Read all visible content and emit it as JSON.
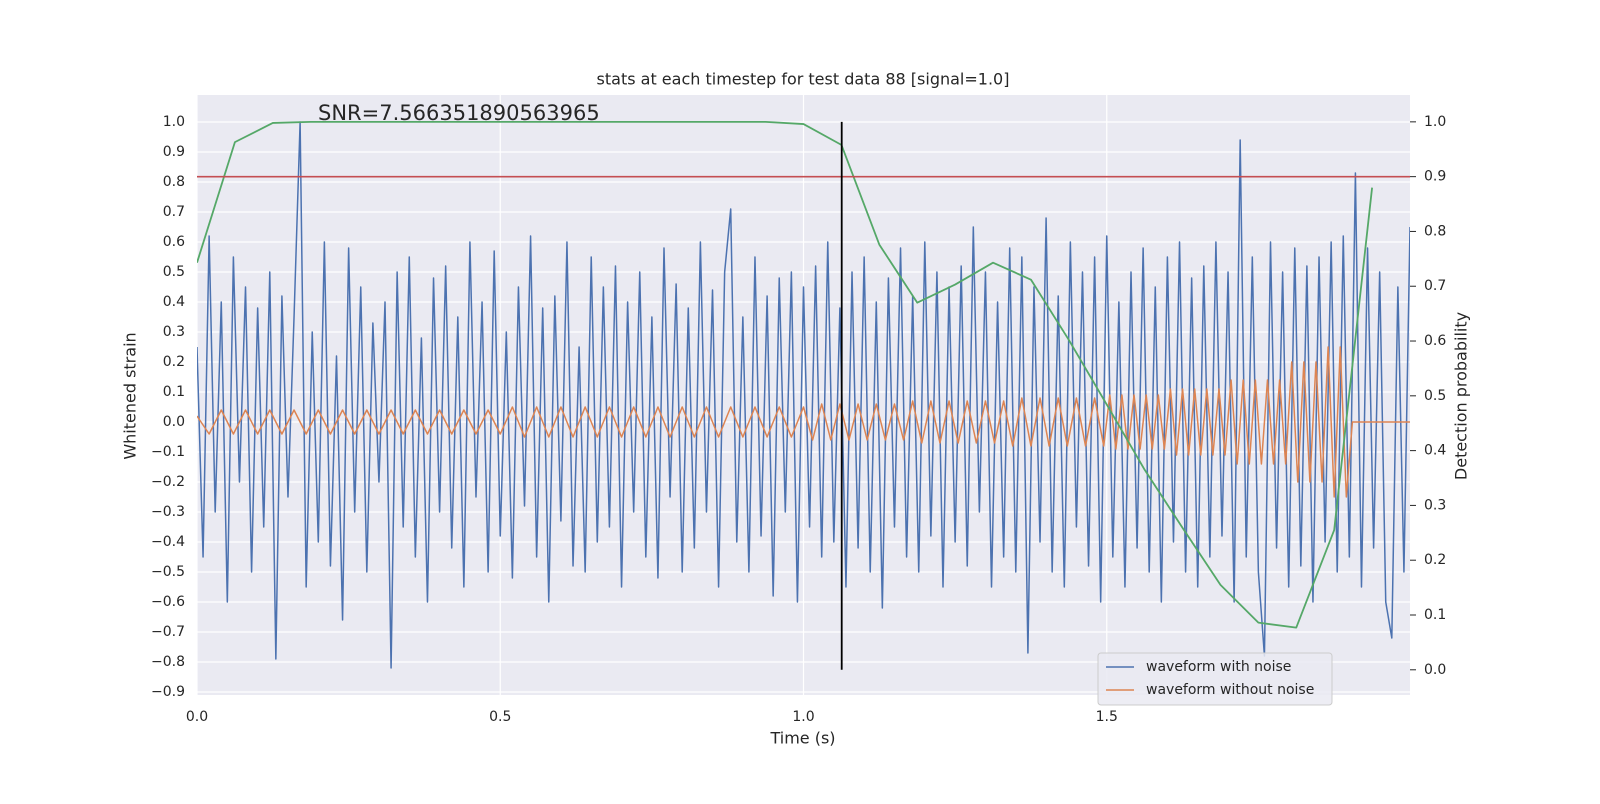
{
  "chart_data": {
    "type": "line",
    "title": "stats at each timestep for test data 88 [signal=1.0]",
    "annotation": "SNR=7.566351890563965",
    "xlabel": "Time (s)",
    "ylabel": "Whitened strain",
    "y2label": "Detection probability",
    "xlim": [
      0,
      2.0
    ],
    "ylim": [
      -0.91,
      1.09
    ],
    "y2lim": [
      -0.046,
      1.049
    ],
    "xticks": [
      {
        "value": 0,
        "label": "0.0"
      },
      {
        "value": 0.5,
        "label": "0.5"
      },
      {
        "value": 1,
        "label": "1.0"
      },
      {
        "value": 1.5,
        "label": "1.5"
      }
    ],
    "yticks": [
      {
        "value": -0.9,
        "label": "−0.9"
      },
      {
        "value": -0.8,
        "label": "−0.8"
      },
      {
        "value": -0.7,
        "label": "−0.7"
      },
      {
        "value": -0.6,
        "label": "−0.6"
      },
      {
        "value": -0.5,
        "label": "−0.5"
      },
      {
        "value": -0.4,
        "label": "−0.4"
      },
      {
        "value": -0.3,
        "label": "−0.3"
      },
      {
        "value": -0.2,
        "label": "−0.2"
      },
      {
        "value": -0.1,
        "label": "−0.1"
      },
      {
        "value": 0,
        "label": "0.0"
      },
      {
        "value": 0.1,
        "label": "0.1"
      },
      {
        "value": 0.2,
        "label": "0.2"
      },
      {
        "value": 0.3,
        "label": "0.3"
      },
      {
        "value": 0.4,
        "label": "0.4"
      },
      {
        "value": 0.5,
        "label": "0.5"
      },
      {
        "value": 0.6,
        "label": "0.6"
      },
      {
        "value": 0.7,
        "label": "0.7"
      },
      {
        "value": 0.8,
        "label": "0.8"
      },
      {
        "value": 0.9,
        "label": "0.9"
      },
      {
        "value": 1,
        "label": "1.0"
      }
    ],
    "y2ticks": [
      {
        "value": 0,
        "label": "0.0"
      },
      {
        "value": 0.1,
        "label": "0.1"
      },
      {
        "value": 0.2,
        "label": "0.2"
      },
      {
        "value": 0.3,
        "label": "0.3"
      },
      {
        "value": 0.4,
        "label": "0.4"
      },
      {
        "value": 0.5,
        "label": "0.5"
      },
      {
        "value": 0.6,
        "label": "0.6"
      },
      {
        "value": 0.7,
        "label": "0.7"
      },
      {
        "value": 0.8,
        "label": "0.8"
      },
      {
        "value": 0.9,
        "label": "0.9"
      },
      {
        "value": 1,
        "label": "1.0"
      }
    ],
    "grid": true,
    "legend": "lower right",
    "series": [
      {
        "name": "waveform with noise",
        "color": "#4c72b0",
        "x": [
          0,
          0.01,
          0.02,
          0.03,
          0.04,
          0.05,
          0.06,
          0.07,
          0.08,
          0.09,
          0.1,
          0.11,
          0.12,
          0.13,
          0.14,
          0.15,
          0.16,
          0.17,
          0.18,
          0.19,
          0.2,
          0.21,
          0.22,
          0.23,
          0.24,
          0.25,
          0.26,
          0.27,
          0.28,
          0.29,
          0.3,
          0.31,
          0.32,
          0.33,
          0.34,
          0.35,
          0.36,
          0.37,
          0.38,
          0.39,
          0.4,
          0.41,
          0.42,
          0.43,
          0.44,
          0.45,
          0.46,
          0.47,
          0.48,
          0.49,
          0.5,
          0.51,
          0.52,
          0.53,
          0.54,
          0.55,
          0.56,
          0.57,
          0.58,
          0.59,
          0.6,
          0.61,
          0.62,
          0.63,
          0.64,
          0.65,
          0.66,
          0.67,
          0.68,
          0.69,
          0.7,
          0.71,
          0.72,
          0.73,
          0.74,
          0.75,
          0.76,
          0.77,
          0.78,
          0.79,
          0.8,
          0.81,
          0.82,
          0.83,
          0.84,
          0.85,
          0.86,
          0.87,
          0.88,
          0.89,
          0.9,
          0.91,
          0.92,
          0.93,
          0.94,
          0.95,
          0.96,
          0.97,
          0.98,
          0.99,
          1,
          1.01,
          1.02,
          1.03,
          1.04,
          1.05,
          1.06,
          1.07,
          1.08,
          1.09,
          1.1,
          1.11,
          1.12,
          1.13,
          1.14,
          1.15,
          1.16,
          1.17,
          1.18,
          1.19,
          1.2,
          1.21,
          1.22,
          1.23,
          1.24,
          1.25,
          1.26,
          1.27,
          1.28,
          1.29,
          1.3,
          1.31,
          1.32,
          1.33,
          1.34,
          1.35,
          1.36,
          1.37,
          1.38,
          1.39,
          1.4,
          1.41,
          1.42,
          1.43,
          1.44,
          1.45,
          1.46,
          1.47,
          1.48,
          1.49,
          1.5,
          1.51,
          1.52,
          1.53,
          1.54,
          1.55,
          1.56,
          1.57,
          1.58,
          1.59,
          1.6,
          1.61,
          1.62,
          1.63,
          1.64,
          1.65,
          1.66,
          1.67,
          1.68,
          1.69,
          1.7,
          1.71,
          1.72,
          1.73,
          1.74,
          1.75,
          1.76,
          1.77,
          1.78,
          1.79,
          1.8,
          1.81,
          1.82,
          1.83,
          1.84,
          1.85,
          1.86,
          1.87,
          1.88,
          1.89,
          1.9,
          1.91,
          1.92,
          1.93,
          1.94,
          1.95,
          1.96,
          1.97,
          1.98,
          1.99,
          2.0
        ],
        "values": [
          0.25,
          -0.45,
          0.62,
          -0.3,
          0.4,
          -0.6,
          0.55,
          -0.2,
          0.45,
          -0.5,
          0.38,
          -0.35,
          0.5,
          -0.79,
          0.42,
          -0.25,
          0.35,
          1.0,
          -0.55,
          0.3,
          -0.4,
          0.6,
          -0.48,
          0.22,
          -0.66,
          0.58,
          -0.3,
          0.45,
          -0.5,
          0.33,
          -0.2,
          0.4,
          -0.82,
          0.5,
          -0.35,
          0.55,
          -0.45,
          0.28,
          -0.6,
          0.48,
          -0.3,
          0.52,
          -0.42,
          0.35,
          -0.55,
          0.6,
          -0.25,
          0.4,
          -0.5,
          0.57,
          -0.38,
          0.3,
          -0.52,
          0.45,
          -0.28,
          0.62,
          -0.45,
          0.38,
          -0.6,
          0.42,
          -0.33,
          0.6,
          -0.48,
          0.25,
          -0.5,
          0.55,
          -0.4,
          0.45,
          -0.35,
          0.52,
          -0.55,
          0.4,
          -0.3,
          0.5,
          -0.45,
          0.35,
          -0.52,
          0.58,
          -0.25,
          0.46,
          -0.5,
          0.38,
          -0.42,
          0.6,
          -0.3,
          0.44,
          -0.55,
          0.5,
          0.71,
          -0.4,
          0.35,
          -0.5,
          0.55,
          -0.38,
          0.42,
          -0.58,
          0.48,
          -0.3,
          0.5,
          -0.6,
          0.45,
          -0.35,
          0.52,
          -0.45,
          0.6,
          -0.4,
          0.38,
          -0.55,
          0.5,
          -0.42,
          0.55,
          -0.5,
          0.4,
          -0.62,
          0.48,
          -0.35,
          0.58,
          -0.45,
          0.42,
          -0.5,
          0.6,
          -0.38,
          0.5,
          -0.55,
          0.45,
          -0.4,
          0.52,
          -0.48,
          0.65,
          -0.3,
          0.5,
          -0.55,
          0.4,
          -0.45,
          0.58,
          -0.5,
          0.55,
          -0.77,
          0.45,
          -0.4,
          0.68,
          -0.5,
          0.42,
          -0.55,
          0.6,
          -0.35,
          0.5,
          -0.48,
          0.55,
          -0.6,
          0.62,
          -0.45,
          0.4,
          -0.55,
          0.5,
          -0.42,
          0.58,
          -0.5,
          0.45,
          -0.6,
          0.55,
          -0.4,
          0.6,
          -0.5,
          0.48,
          -0.55,
          0.52,
          -0.45,
          0.6,
          -0.38,
          0.5,
          -0.6,
          0.94,
          -0.45,
          0.55,
          -0.5,
          -0.78,
          0.6,
          -0.42,
          0.5,
          -0.55,
          0.58,
          -0.48,
          0.52,
          -0.6,
          0.55,
          -0.4,
          0.6,
          -0.5,
          0.62,
          -0.45,
          0.83,
          -0.55,
          0.58,
          -0.42,
          0.5,
          -0.6,
          -0.72,
          0.45,
          -0.5,
          0.65
        ]
      },
      {
        "name": "waveform without noise",
        "color": "#dd8452",
        "x": [
          0,
          0.02,
          0.04,
          0.06,
          0.08,
          0.1,
          0.12,
          0.14,
          0.16,
          0.18,
          0.2,
          0.22,
          0.24,
          0.26,
          0.28,
          0.3,
          0.32,
          0.34,
          0.36,
          0.38,
          0.4,
          0.42,
          0.44,
          0.46,
          0.48,
          0.5,
          0.52,
          0.54,
          0.56,
          0.58,
          0.6,
          0.62,
          0.64,
          0.66,
          0.68,
          0.7,
          0.72,
          0.74,
          0.76,
          0.78,
          0.8,
          0.82,
          0.84,
          0.86,
          0.88,
          0.9,
          0.92,
          0.94,
          0.96,
          0.98,
          1.0,
          1.015,
          1.03,
          1.045,
          1.06,
          1.075,
          1.09,
          1.105,
          1.12,
          1.135,
          1.15,
          1.165,
          1.18,
          1.195,
          1.21,
          1.225,
          1.24,
          1.255,
          1.27,
          1.285,
          1.3,
          1.315,
          1.33,
          1.345,
          1.36,
          1.375,
          1.39,
          1.405,
          1.42,
          1.435,
          1.45,
          1.465,
          1.48,
          1.495,
          1.505,
          1.515,
          1.525,
          1.535,
          1.545,
          1.555,
          1.565,
          1.575,
          1.585,
          1.595,
          1.605,
          1.615,
          1.625,
          1.635,
          1.645,
          1.655,
          1.665,
          1.675,
          1.685,
          1.695,
          1.705,
          1.715,
          1.725,
          1.735,
          1.745,
          1.755,
          1.765,
          1.775,
          1.785,
          1.795,
          1.805,
          1.815,
          1.825,
          1.835,
          1.845,
          1.855,
          1.865,
          1.875,
          1.885,
          1.895,
          1.905,
          2.0
        ],
        "values": [
          0.02,
          -0.04,
          0.04,
          -0.04,
          0.04,
          -0.04,
          0.04,
          -0.04,
          0.04,
          -0.04,
          0.04,
          -0.04,
          0.04,
          -0.04,
          0.04,
          -0.04,
          0.04,
          -0.04,
          0.04,
          -0.04,
          0.04,
          -0.04,
          0.04,
          -0.04,
          0.04,
          -0.04,
          0.05,
          -0.05,
          0.05,
          -0.05,
          0.05,
          -0.05,
          0.05,
          -0.05,
          0.05,
          -0.05,
          0.05,
          -0.05,
          0.05,
          -0.05,
          0.05,
          -0.05,
          0.05,
          -0.05,
          0.05,
          -0.05,
          0.05,
          -0.05,
          0.05,
          -0.05,
          0.05,
          -0.06,
          0.06,
          -0.06,
          0.06,
          -0.06,
          0.06,
          -0.06,
          0.06,
          -0.06,
          0.06,
          -0.06,
          0.07,
          -0.07,
          0.07,
          -0.07,
          0.07,
          -0.07,
          0.07,
          -0.07,
          0.07,
          -0.07,
          0.07,
          -0.08,
          0.08,
          -0.08,
          0.08,
          -0.08,
          0.08,
          -0.08,
          0.08,
          -0.08,
          0.08,
          -0.08,
          0.09,
          -0.09,
          0.09,
          -0.09,
          0.09,
          -0.09,
          0.09,
          -0.09,
          0.09,
          -0.09,
          0.11,
          -0.11,
          0.11,
          -0.11,
          0.11,
          -0.11,
          0.11,
          -0.11,
          0.11,
          -0.11,
          0.14,
          -0.14,
          0.14,
          -0.14,
          0.14,
          -0.14,
          0.14,
          -0.14,
          0.14,
          -0.14,
          0.2,
          -0.2,
          0.2,
          -0.2,
          0.2,
          -0.2,
          0.25,
          -0.25,
          0.25,
          -0.25,
          0,
          0
        ]
      },
      {
        "color": "#55a868",
        "axis": "y2",
        "x": [
          0,
          0.0625,
          0.125,
          0.1875,
          0.25,
          0.3125,
          0.375,
          0.4375,
          0.5,
          0.5625,
          0.625,
          0.6875,
          0.75,
          0.8125,
          0.875,
          0.9375,
          1.0,
          1.0625,
          1.125,
          1.1875,
          1.25,
          1.3125,
          1.375,
          1.4375,
          1.5,
          1.5625,
          1.625,
          1.6875,
          1.75,
          1.8125,
          1.875,
          1.9375
        ],
        "values": [
          0.743,
          0.963,
          0.998,
          1.0,
          1.0,
          1.0,
          1.0,
          1.0,
          1.0,
          1.0,
          1.0,
          1.0,
          1.0,
          1.0,
          1.0,
          1.0,
          0.996,
          0.958,
          0.776,
          0.67,
          0.703,
          0.743,
          0.712,
          0.602,
          0.484,
          0.365,
          0.259,
          0.155,
          0.086,
          0.077,
          0.255,
          0.88
        ]
      }
    ],
    "threshold": {
      "y2": 0.9,
      "color": "#c44e52"
    },
    "vline": {
      "x": 1.063,
      "y2min": 0,
      "y2max": 1,
      "color": "#000000"
    }
  }
}
